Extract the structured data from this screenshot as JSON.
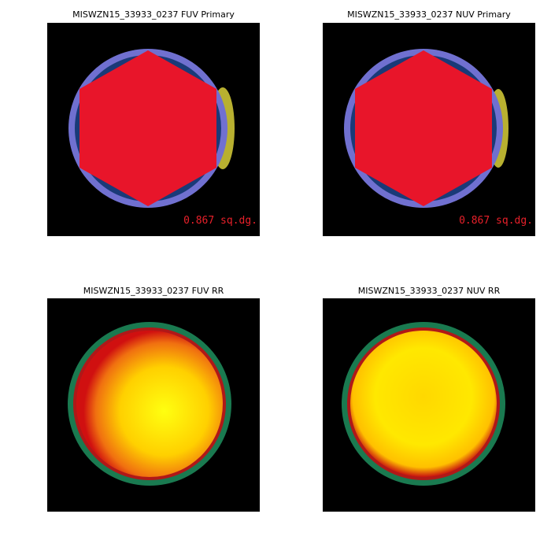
{
  "panels": [
    {
      "title": "MISWZN15_33933_0237 FUV Primary",
      "area_label": "0.867 sq.dg."
    },
    {
      "title": "MISWZN15_33933_0237 NUV Primary",
      "area_label": "0.867 sq.dg."
    },
    {
      "title": "MISWZN15_33933_0237 FUV RR"
    },
    {
      "title": "MISWZN15_33933_0237 NUV RR"
    }
  ]
}
